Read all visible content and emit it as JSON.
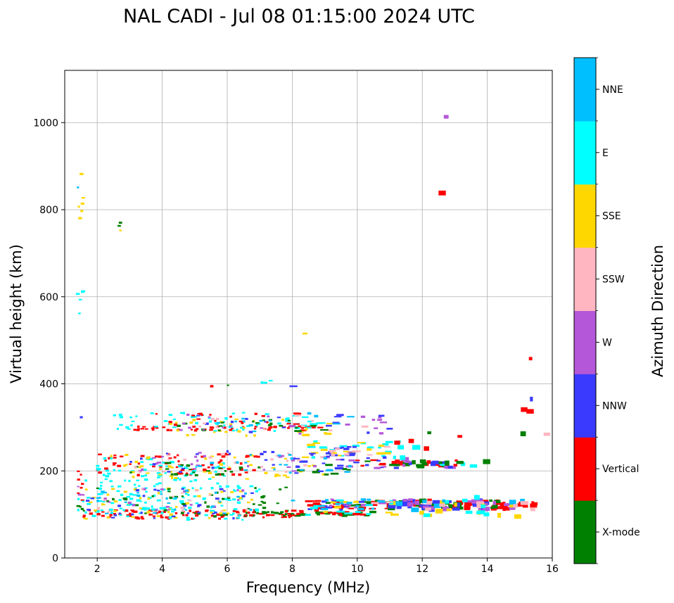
{
  "chart_data": {
    "type": "scatter",
    "title": "NAL CADI - Jul 08 01:15:00 2024 UTC",
    "xlabel": "Frequency (MHz)",
    "ylabel": "Virtual height (km)",
    "xlim": [
      1,
      16
    ],
    "ylim": [
      0,
      1120
    ],
    "xticks": [
      2,
      4,
      6,
      8,
      10,
      12,
      14,
      16
    ],
    "yticks": [
      0,
      200,
      400,
      600,
      800,
      1000
    ],
    "grid": true,
    "colorbar": {
      "label": "Azimuth Direction",
      "categories": [
        {
          "name": "X-mode",
          "color": "#008000"
        },
        {
          "name": "Vertical",
          "color": "#ff0000"
        },
        {
          "name": "NNW",
          "color": "#3a3aff"
        },
        {
          "name": "W",
          "color": "#b457d8"
        },
        {
          "name": "SSW",
          "color": "#ffb6c1"
        },
        {
          "name": "SSE",
          "color": "#ffd700"
        },
        {
          "name": "E",
          "color": "#00ffff"
        },
        {
          "name": "NNE",
          "color": "#00bfff"
        }
      ]
    },
    "clusters": [
      {
        "dir": "E",
        "x": [
          1.4,
          1.6
        ],
        "y": [
          560,
          630
        ],
        "n": 5
      },
      {
        "dir": "NNE",
        "x": [
          1.4,
          1.6
        ],
        "y": [
          840,
          855
        ],
        "n": 1
      },
      {
        "dir": "SSE",
        "x": [
          1.4,
          1.6
        ],
        "y": [
          775,
          830
        ],
        "n": 5
      },
      {
        "dir": "SSE",
        "x": [
          1.5,
          1.7
        ],
        "y": [
          875,
          882
        ],
        "n": 1
      },
      {
        "dir": "NNW",
        "x": [
          1.4,
          1.6
        ],
        "y": [
          318,
          328
        ],
        "n": 1
      },
      {
        "dir": "X-mode",
        "x": [
          2.6,
          2.8
        ],
        "y": [
          752,
          772
        ],
        "n": 2
      },
      {
        "dir": "SSE",
        "x": [
          2.6,
          2.8
        ],
        "y": [
          752,
          772
        ],
        "n": 1
      },
      {
        "dir": "W",
        "x": [
          12.5,
          12.8
        ],
        "y": [
          1010,
          1016
        ],
        "n": 1
      },
      {
        "dir": "Vertical",
        "x": [
          12.5,
          12.8
        ],
        "y": [
          836,
          842
        ],
        "n": 1
      },
      {
        "dir": "SSE",
        "x": [
          8.3,
          8.6
        ],
        "y": [
          510,
          516
        ],
        "n": 1
      },
      {
        "dir": "Vertical",
        "x": [
          15.1,
          15.5
        ],
        "y": [
          456,
          462
        ],
        "n": 1
      },
      {
        "dir": "Vertical",
        "x": [
          15.1,
          15.6
        ],
        "y": [
          335,
          350
        ],
        "n": 2
      },
      {
        "dir": "NNW",
        "x": [
          15.1,
          15.6
        ],
        "y": [
          360,
          368
        ],
        "n": 1
      },
      {
        "dir": "E",
        "x": [
          7.0,
          7.4
        ],
        "y": [
          395,
          410
        ],
        "n": 3
      },
      {
        "dir": "X-mode",
        "x": [
          5.9,
          6.1
        ],
        "y": [
          388,
          398
        ],
        "n": 1
      },
      {
        "dir": "Vertical",
        "x": [
          5.4,
          5.6
        ],
        "y": [
          393,
          400
        ],
        "n": 1
      },
      {
        "dir": "NNW",
        "x": [
          7.8,
          8.1
        ],
        "y": [
          393,
          398
        ],
        "n": 1
      },
      {
        "dir": "Vertical",
        "x": [
          1.4,
          1.6
        ],
        "y": [
          85,
          205
        ],
        "n": 8
      },
      {
        "dir": "W",
        "x": [
          1.4,
          1.6
        ],
        "y": [
          130,
          170
        ],
        "n": 3
      },
      {
        "dir": "X-mode",
        "x": [
          1.4,
          1.6
        ],
        "y": [
          85,
          120
        ],
        "n": 4
      },
      {
        "dir": "E",
        "x": [
          1.4,
          1.6
        ],
        "y": [
          90,
          140
        ],
        "n": 3
      },
      {
        "dir": "Vertical",
        "x": [
          1.6,
          8
        ],
        "y": [
          90,
          110
        ],
        "n": 80
      },
      {
        "dir": "E",
        "x": [
          1.6,
          7
        ],
        "y": [
          85,
          180
        ],
        "n": 130
      },
      {
        "dir": "SSE",
        "x": [
          1.6,
          7
        ],
        "y": [
          90,
          160
        ],
        "n": 50
      },
      {
        "dir": "NNW",
        "x": [
          1.6,
          7
        ],
        "y": [
          90,
          160
        ],
        "n": 30
      },
      {
        "dir": "X-mode",
        "x": [
          2,
          8
        ],
        "y": [
          95,
          165
        ],
        "n": 40
      },
      {
        "dir": "W",
        "x": [
          2,
          7
        ],
        "y": [
          100,
          160
        ],
        "n": 15
      },
      {
        "dir": "SSW",
        "x": [
          2,
          7
        ],
        "y": [
          100,
          160
        ],
        "n": 15
      },
      {
        "dir": "NNE",
        "x": [
          2,
          7
        ],
        "y": [
          100,
          160
        ],
        "n": 25
      },
      {
        "dir": "X-mode",
        "x": [
          6.5,
          10.5
        ],
        "y": [
          96,
          106
        ],
        "n": 40
      },
      {
        "dir": "Vertical",
        "x": [
          6.5,
          10.5
        ],
        "y": [
          96,
          110
        ],
        "n": 30
      },
      {
        "dir": "Vertical",
        "x": [
          8.5,
          15.5
        ],
        "y": [
          112,
          132
        ],
        "n": 75
      },
      {
        "dir": "X-mode",
        "x": [
          9,
          15
        ],
        "y": [
          112,
          132
        ],
        "n": 35
      },
      {
        "dir": "NNW",
        "x": [
          8.5,
          14
        ],
        "y": [
          110,
          135
        ],
        "n": 40
      },
      {
        "dir": "W",
        "x": [
          9,
          15
        ],
        "y": [
          110,
          135
        ],
        "n": 25
      },
      {
        "dir": "SSE",
        "x": [
          9,
          15
        ],
        "y": [
          95,
          130
        ],
        "n": 20
      },
      {
        "dir": "E",
        "x": [
          8,
          14
        ],
        "y": [
          95,
          140
        ],
        "n": 20
      },
      {
        "dir": "NNE",
        "x": [
          8,
          16
        ],
        "y": [
          110,
          135
        ],
        "n": 20
      },
      {
        "dir": "SSW",
        "x": [
          10,
          16
        ],
        "y": [
          110,
          130
        ],
        "n": 10
      },
      {
        "dir": "Vertical",
        "x": [
          2,
          7
        ],
        "y": [
          190,
          240
        ],
        "n": 60
      },
      {
        "dir": "E",
        "x": [
          2,
          6
        ],
        "y": [
          180,
          230
        ],
        "n": 50
      },
      {
        "dir": "SSE",
        "x": [
          2,
          9
        ],
        "y": [
          180,
          240
        ],
        "n": 45
      },
      {
        "dir": "X-mode",
        "x": [
          3,
          10
        ],
        "y": [
          190,
          220
        ],
        "n": 35
      },
      {
        "dir": "W",
        "x": [
          3,
          10
        ],
        "y": [
          195,
          245
        ],
        "n": 30
      },
      {
        "dir": "NNW",
        "x": [
          3,
          10
        ],
        "y": [
          195,
          245
        ],
        "n": 30
      },
      {
        "dir": "SSW",
        "x": [
          3,
          9
        ],
        "y": [
          195,
          240
        ],
        "n": 20
      },
      {
        "dir": "NNE",
        "x": [
          4,
          10
        ],
        "y": [
          195,
          240
        ],
        "n": 20
      },
      {
        "dir": "Vertical",
        "x": [
          10,
          13.2
        ],
        "y": [
          210,
          225
        ],
        "n": 16
      },
      {
        "dir": "X-mode",
        "x": [
          10,
          13
        ],
        "y": [
          210,
          225
        ],
        "n": 10
      },
      {
        "dir": "NNW",
        "x": [
          10,
          13
        ],
        "y": [
          205,
          230
        ],
        "n": 10
      },
      {
        "dir": "W",
        "x": [
          10,
          13
        ],
        "y": [
          205,
          230
        ],
        "n": 8
      },
      {
        "dir": "E",
        "x": [
          12,
          13.8
        ],
        "y": [
          210,
          216
        ],
        "n": 3
      },
      {
        "dir": "X-mode",
        "x": [
          12.2,
          14
        ],
        "y": [
          212,
          222
        ],
        "n": 4
      },
      {
        "dir": "E",
        "x": [
          8.5,
          12
        ],
        "y": [
          230,
          270
        ],
        "n": 25
      },
      {
        "dir": "SSE",
        "x": [
          8.5,
          11
        ],
        "y": [
          235,
          270
        ],
        "n": 15
      },
      {
        "dir": "NNW",
        "x": [
          8.5,
          11
        ],
        "y": [
          230,
          260
        ],
        "n": 12
      },
      {
        "dir": "SSW",
        "x": [
          9,
          11
        ],
        "y": [
          230,
          260
        ],
        "n": 8
      },
      {
        "dir": "Vertical",
        "x": [
          11,
          12.6
        ],
        "y": [
          250,
          270
        ],
        "n": 4
      },
      {
        "dir": "Vertical",
        "x": [
          13,
          13.6
        ],
        "y": [
          275,
          282
        ],
        "n": 1
      },
      {
        "dir": "Vertical",
        "x": [
          3,
          9
        ],
        "y": [
          293,
          302
        ],
        "n": 45
      },
      {
        "dir": "E",
        "x": [
          2.5,
          9
        ],
        "y": [
          290,
          335
        ],
        "n": 60
      },
      {
        "dir": "SSE",
        "x": [
          4,
          9.5
        ],
        "y": [
          280,
          320
        ],
        "n": 25
      },
      {
        "dir": "X-mode",
        "x": [
          4,
          9
        ],
        "y": [
          290,
          320
        ],
        "n": 20
      },
      {
        "dir": "W",
        "x": [
          4,
          11
        ],
        "y": [
          285,
          330
        ],
        "n": 20
      },
      {
        "dir": "NNW",
        "x": [
          4,
          11
        ],
        "y": [
          285,
          330
        ],
        "n": 15
      },
      {
        "dir": "SSW",
        "x": [
          5,
          10.5
        ],
        "y": [
          285,
          330
        ],
        "n": 12
      },
      {
        "dir": "NNE",
        "x": [
          5,
          11.5
        ],
        "y": [
          285,
          335
        ],
        "n": 12
      },
      {
        "dir": "Vertical",
        "x": [
          3.8,
          8.2
        ],
        "y": [
          305,
          335
        ],
        "n": 20
      },
      {
        "dir": "X-mode",
        "x": [
          12.2,
          12.5
        ],
        "y": [
          285,
          290
        ],
        "n": 1
      },
      {
        "dir": "X-mode",
        "x": [
          14.9,
          15.7
        ],
        "y": [
          285,
          290
        ],
        "n": 1
      },
      {
        "dir": "SSW",
        "x": [
          15.5,
          16
        ],
        "y": [
          283,
          288
        ],
        "n": 1
      }
    ]
  }
}
